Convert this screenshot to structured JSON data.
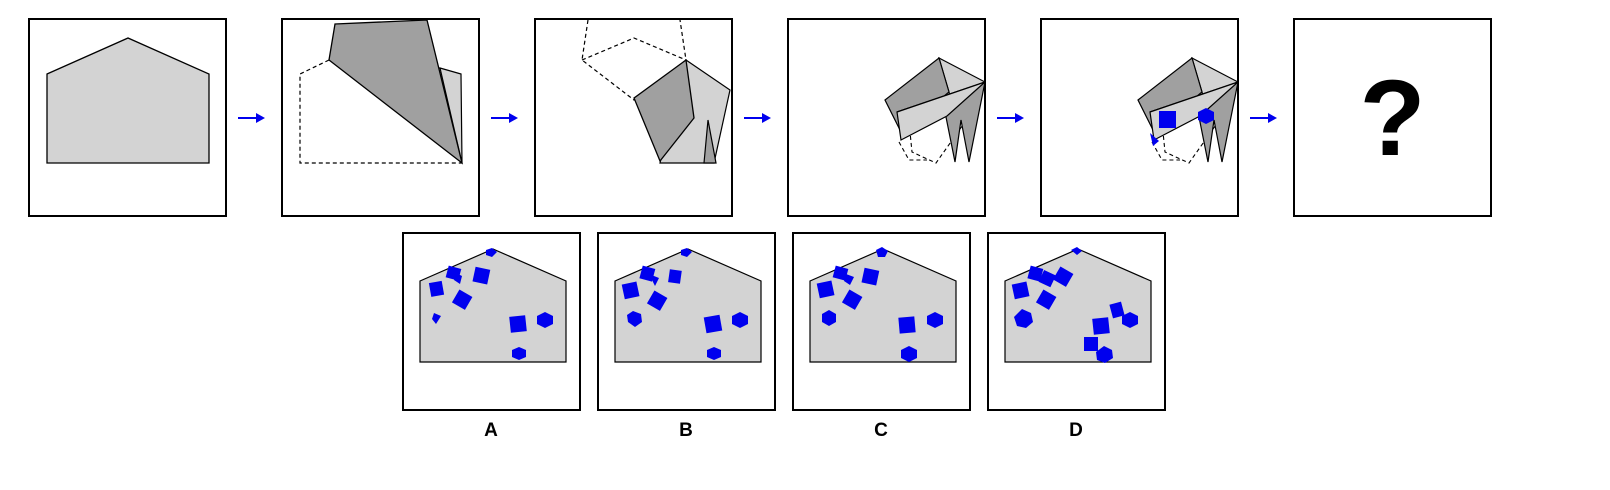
{
  "question_mark": "?",
  "options": [
    "A",
    "B",
    "C",
    "D"
  ],
  "colors": {
    "paper": "#d3d3d3",
    "fold": "#a0a0a0",
    "hole": "#0000ee",
    "arrow": "#0000ee"
  },
  "icons": [
    "right-arrow-icon",
    "square-hole-icon",
    "hexagon-hole-icon"
  ]
}
